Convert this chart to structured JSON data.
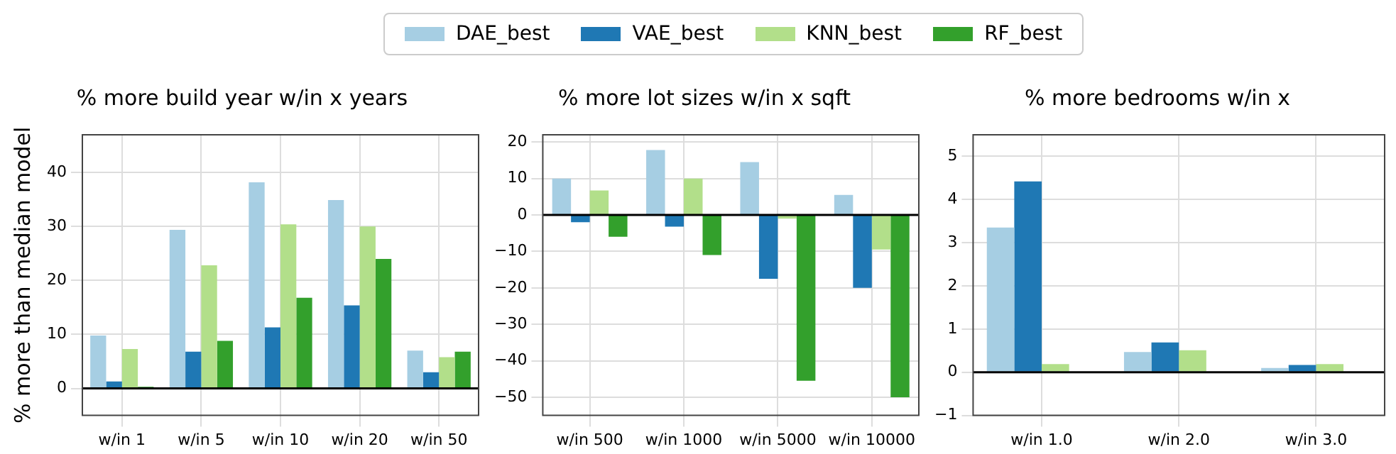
{
  "chart_data": [
    {
      "type": "bar",
      "title": "% more build year w/in x years",
      "ylabel": "% more than median model",
      "categories": [
        "w/in 1",
        "w/in 5",
        "w/in 10",
        "w/in 20",
        "w/in 50"
      ],
      "series": [
        {
          "name": "DAE_best",
          "color": "#a6cee3",
          "values": [
            9.8,
            29.4,
            38.2,
            34.9,
            7.0
          ]
        },
        {
          "name": "VAE_best",
          "color": "#1f78b4",
          "values": [
            1.3,
            6.8,
            11.3,
            15.4,
            3.0
          ]
        },
        {
          "name": "KNN_best",
          "color": "#b2df8a",
          "values": [
            7.3,
            22.8,
            30.4,
            30.0,
            5.8
          ]
        },
        {
          "name": "RF_best",
          "color": "#33a02c",
          "values": [
            0.3,
            8.8,
            16.8,
            24.0,
            6.8
          ]
        }
      ],
      "ylim": [
        -5,
        47
      ],
      "yticks": [
        0,
        10,
        20,
        30,
        40
      ],
      "grid": true,
      "legend": "top",
      "ref_lines": [
        {
          "axis": "y",
          "value": 0,
          "color": "#000000"
        }
      ]
    },
    {
      "type": "bar",
      "title": "% more lot sizes w/in x sqft",
      "categories": [
        "w/in 500",
        "w/in 1000",
        "w/in 5000",
        "w/in 10000"
      ],
      "series": [
        {
          "color": "#a6cee3",
          "values": [
            10,
            17.8,
            14.5,
            5.5
          ]
        },
        {
          "color": "#1f78b4",
          "values": [
            -2,
            -3.2,
            -17.5,
            -20
          ]
        },
        {
          "color": "#b2df8a",
          "values": [
            6.7,
            10,
            -1,
            -9.5
          ]
        },
        {
          "color": "#33a02c",
          "values": [
            -6,
            -11,
            -45.5,
            -50
          ]
        }
      ],
      "ylim": [
        -55,
        22
      ],
      "yticks": [
        {
          "value": -50,
          "label": "−50"
        },
        {
          "value": -40,
          "label": "−40"
        },
        {
          "value": -30,
          "label": "−30"
        },
        {
          "value": -20,
          "label": "−20"
        },
        {
          "value": -10,
          "label": "−10"
        },
        0,
        10,
        20
      ],
      "grid": true,
      "ref_lines": [
        {
          "axis": "y",
          "value": 0,
          "color": "#000000"
        }
      ]
    },
    {
      "type": "bar",
      "title": "% more bedrooms w/in x",
      "categories": [
        "w/in 1.0",
        "w/in 2.0",
        "w/in 3.0"
      ],
      "series": [
        {
          "color": "#a6cee3",
          "values": [
            3.35,
            0.47,
            0.1
          ]
        },
        {
          "color": "#1f78b4",
          "values": [
            4.42,
            0.69,
            0.17
          ]
        },
        {
          "color": "#b2df8a",
          "values": [
            0.19,
            0.51,
            0.19
          ]
        },
        {
          "color": "#33a02c",
          "values": [
            0,
            0,
            0
          ]
        }
      ],
      "ylim": [
        -1,
        5.5
      ],
      "yticks": [
        {
          "value": -1,
          "label": "−1"
        },
        0,
        1,
        2,
        3,
        4,
        5
      ],
      "grid": true,
      "ref_lines": [
        {
          "axis": "y",
          "value": 0,
          "color": "#000000"
        }
      ]
    }
  ]
}
